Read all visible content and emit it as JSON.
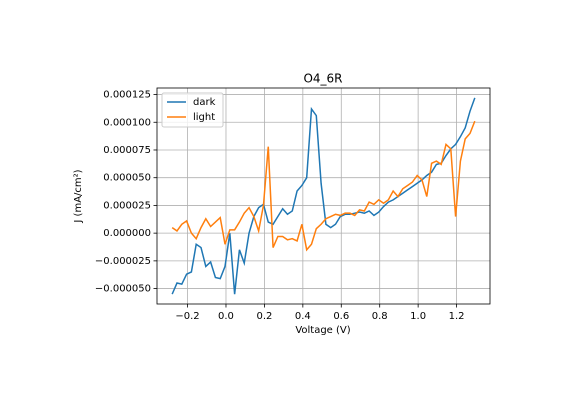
{
  "chart_data": {
    "type": "line",
    "title": "O4_6R",
    "xlabel": "Voltage (V)",
    "ylabel": "J (mA/cm²)",
    "x": [
      -0.28,
      -0.255,
      -0.23,
      -0.205,
      -0.18,
      -0.155,
      -0.13,
      -0.105,
      -0.08,
      -0.055,
      -0.03,
      -0.005,
      0.02,
      0.045,
      0.07,
      0.095,
      0.12,
      0.145,
      0.17,
      0.195,
      0.22,
      0.245,
      0.27,
      0.295,
      0.32,
      0.345,
      0.37,
      0.395,
      0.42,
      0.445,
      0.47,
      0.495,
      0.52,
      0.545,
      0.57,
      0.595,
      0.62,
      0.645,
      0.67,
      0.695,
      0.72,
      0.745,
      0.77,
      0.795,
      0.82,
      0.845,
      0.87,
      0.895,
      0.92,
      0.945,
      0.97,
      0.995,
      1.02,
      1.045,
      1.07,
      1.095,
      1.12,
      1.145,
      1.17,
      1.195,
      1.22,
      1.245,
      1.27,
      1.295
    ],
    "series": [
      {
        "name": "dark",
        "color": "#1f77b4",
        "values": [
          -5.5e-05,
          -4.5e-05,
          -4.6e-05,
          -3.7e-05,
          -3.5e-05,
          -1e-05,
          -1.3e-05,
          -3e-05,
          -2.6e-05,
          -4e-05,
          -4.1e-05,
          -3e-05,
          0.0,
          -5.5e-05,
          -1.5e-05,
          -2.7e-05,
          0.0,
          1.5e-05,
          2.3e-05,
          2.6e-05,
          1e-05,
          8e-06,
          1.5e-05,
          2.2e-05,
          1.7e-05,
          2e-05,
          3.8e-05,
          4.3e-05,
          5e-05,
          0.000112,
          0.000106,
          4.5e-05,
          8e-06,
          5e-06,
          8e-06,
          1.5e-05,
          1.7e-05,
          1.7e-05,
          1.8e-05,
          1.9e-05,
          1.8e-05,
          2e-05,
          1.6e-05,
          1.9e-05,
          2.4e-05,
          2.8e-05,
          3e-05,
          3.3e-05,
          3.6e-05,
          3.9e-05,
          4.2e-05,
          4.5e-05,
          4.8e-05,
          5.2e-05,
          5.5e-05,
          6.2e-05,
          6.3e-05,
          7e-05,
          7.6e-05,
          8e-05,
          8.7e-05,
          9.5e-05,
          0.00011,
          0.000122
        ]
      },
      {
        "name": "light",
        "color": "#ff7f0e",
        "values": [
          5e-06,
          2e-06,
          8e-06,
          1.1e-05,
          0.0,
          -5e-06,
          5e-06,
          1.3e-05,
          6e-06,
          1e-05,
          1.4e-05,
          -1e-05,
          3e-06,
          3e-06,
          1e-05,
          1.8e-05,
          2.3e-05,
          1.5e-05,
          2e-06,
          2.5e-05,
          7.8e-05,
          -1.3e-05,
          -3e-06,
          -3e-06,
          -6e-06,
          -5e-06,
          -7e-06,
          8e-06,
          -1.5e-05,
          -1e-05,
          4e-06,
          8e-06,
          1.3e-05,
          1.5e-05,
          1.7e-05,
          1.6e-05,
          1.8e-05,
          1.8e-05,
          1.6e-05,
          2.1e-05,
          2e-05,
          2.8e-05,
          2.6e-05,
          3e-05,
          2.7e-05,
          3e-05,
          3.8e-05,
          3.3e-05,
          4e-05,
          4.3e-05,
          4.6e-05,
          5.2e-05,
          4.8e-05,
          3.3e-05,
          6.3e-05,
          6.5e-05,
          6.2e-05,
          8e-05,
          7.6e-05,
          1.5e-05,
          6.5e-05,
          8.5e-05,
          9e-05,
          0.000101
        ]
      }
    ],
    "xlim": [
      -0.359,
      1.374
    ],
    "xticks": [
      {
        "value": -0.2,
        "label": "−0.2"
      },
      {
        "value": 0,
        "label": "0.0"
      },
      0.2,
      0.4,
      0.6,
      0.8,
      {
        "value": 1,
        "label": "1.0"
      },
      1.2
    ],
    "ylim": [
      -6.39e-05,
      0.0001309
    ],
    "yticks": [
      {
        "value": -5e-05,
        "label": "−0.000050"
      },
      {
        "value": -2.5e-05,
        "label": "−0.000025"
      },
      {
        "value": 0,
        "label": "0.000000"
      },
      {
        "value": 2.5e-05,
        "label": "0.000025"
      },
      {
        "value": 5e-05,
        "label": "0.000050"
      },
      {
        "value": 7.5e-05,
        "label": "0.000075"
      },
      {
        "value": 0.0001,
        "label": "0.000100"
      },
      {
        "value": 0.000125,
        "label": "0.000125"
      }
    ],
    "grid": true,
    "legend": "upper left"
  }
}
